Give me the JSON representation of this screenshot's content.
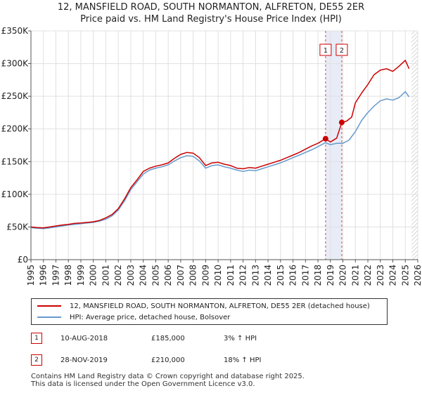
{
  "chart_data": {
    "type": "line",
    "title": "12, MANSFIELD ROAD, SOUTH NORMANTON, ALFRETON, DE55 2ER",
    "subtitle": "Price paid vs. HM Land Registry's House Price Index (HPI)",
    "xlim": [
      1995,
      2026
    ],
    "ylim": [
      0,
      350000
    ],
    "y_ticks": [
      0,
      50000,
      100000,
      150000,
      200000,
      250000,
      300000,
      350000
    ],
    "y_tick_labels": [
      "£0",
      "£50K",
      "£100K",
      "£150K",
      "£200K",
      "£250K",
      "£300K",
      "£350K"
    ],
    "x_ticks": [
      1995,
      1996,
      1997,
      1998,
      1999,
      2000,
      2001,
      2002,
      2003,
      2004,
      2005,
      2006,
      2007,
      2008,
      2009,
      2010,
      2011,
      2012,
      2013,
      2014,
      2015,
      2016,
      2017,
      2018,
      2019,
      2020,
      2021,
      2022,
      2023,
      2024,
      2025,
      2026
    ],
    "x_tick_labels": [
      "1995",
      "1996",
      "1997",
      "1998",
      "1999",
      "2000",
      "2001",
      "2002",
      "2003",
      "2004",
      "2005",
      "2006",
      "2007",
      "2008",
      "2009",
      "2010",
      "2011",
      "2012",
      "2013",
      "2014",
      "2015",
      "2016",
      "2017",
      "2018",
      "2019",
      "2020",
      "2021",
      "2022",
      "2023",
      "2024",
      "2025",
      "2026"
    ],
    "grid": true,
    "legend_position": "below",
    "series": [
      {
        "name": "12, MANSFIELD ROAD, SOUTH NORMANTON, ALFRETON, DE55 2ER (detached house)",
        "color": "#cc0000",
        "x": [
          1995.0,
          1995.5,
          1996.0,
          1996.5,
          1997.0,
          1997.5,
          1998.0,
          1998.5,
          1999.0,
          1999.5,
          2000.0,
          2000.5,
          2001.0,
          2001.5,
          2002.0,
          2002.5,
          2003.0,
          2003.5,
          2004.0,
          2004.5,
          2005.0,
          2005.5,
          2006.0,
          2006.5,
          2007.0,
          2007.5,
          2008.0,
          2008.5,
          2009.0,
          2009.5,
          2010.0,
          2010.5,
          2011.0,
          2011.5,
          2012.0,
          2012.5,
          2013.0,
          2013.5,
          2014.0,
          2014.5,
          2015.0,
          2015.5,
          2016.0,
          2016.5,
          2017.0,
          2017.5,
          2018.0,
          2018.6,
          2019.0,
          2019.5,
          2019.91,
          2020.3,
          2020.7,
          2021.0,
          2021.5,
          2022.0,
          2022.5,
          2023.0,
          2023.5,
          2024.0,
          2024.5,
          2025.0,
          2025.3
        ],
        "y": [
          50000,
          49000,
          48500,
          50000,
          51500,
          53000,
          54000,
          55500,
          56000,
          57000,
          58000,
          60000,
          64000,
          69000,
          78000,
          93000,
          110000,
          122000,
          135000,
          140000,
          143000,
          145000,
          148000,
          155000,
          161000,
          164000,
          163000,
          156000,
          144000,
          148000,
          149000,
          146000,
          144000,
          140000,
          139000,
          141000,
          140000,
          143000,
          146000,
          149000,
          152000,
          156000,
          160000,
          164000,
          169000,
          174000,
          178000,
          185000,
          180000,
          186000,
          210000,
          212000,
          218000,
          240000,
          255000,
          268000,
          283000,
          290000,
          292000,
          288000,
          296000,
          305000,
          292000
        ]
      },
      {
        "name": "HPI: Average price, detached house, Bolsover",
        "color": "#6699cc",
        "x": [
          1995.0,
          1995.5,
          1996.0,
          1996.5,
          1997.0,
          1997.5,
          1998.0,
          1998.5,
          1999.0,
          1999.5,
          2000.0,
          2000.5,
          2001.0,
          2001.5,
          2002.0,
          2002.5,
          2003.0,
          2003.5,
          2004.0,
          2004.5,
          2005.0,
          2005.5,
          2006.0,
          2006.5,
          2007.0,
          2007.5,
          2008.0,
          2008.5,
          2009.0,
          2009.5,
          2010.0,
          2010.5,
          2011.0,
          2011.5,
          2012.0,
          2012.5,
          2013.0,
          2013.5,
          2014.0,
          2014.5,
          2015.0,
          2015.5,
          2016.0,
          2016.5,
          2017.0,
          2017.5,
          2018.0,
          2018.6,
          2019.0,
          2019.5,
          2020.0,
          2020.5,
          2021.0,
          2021.5,
          2022.0,
          2022.5,
          2023.0,
          2023.5,
          2024.0,
          2024.5,
          2025.0,
          2025.3
        ],
        "y": [
          49000,
          48000,
          47500,
          48500,
          50000,
          51500,
          53000,
          54000,
          55000,
          56000,
          57000,
          59000,
          62000,
          67000,
          76000,
          90000,
          107000,
          119000,
          131000,
          137000,
          140000,
          142000,
          145000,
          151000,
          156000,
          159000,
          158000,
          151000,
          140000,
          144000,
          145000,
          142000,
          140000,
          137000,
          135000,
          137000,
          136000,
          139000,
          142000,
          145000,
          148000,
          152000,
          156000,
          160000,
          164000,
          168000,
          173000,
          179000,
          176000,
          178000,
          178000,
          183000,
          196000,
          213000,
          225000,
          235000,
          243000,
          246000,
          244000,
          248000,
          257000,
          249000
        ]
      }
    ],
    "markers": [
      {
        "label": "1",
        "x": 2018.61,
        "y": 185000
      },
      {
        "label": "2",
        "x": 2019.91,
        "y": 210000
      }
    ],
    "shaded_ranges": [
      [
        2018.61,
        2019.91
      ]
    ],
    "hatched_from": 2025.5
  },
  "legend": {
    "items": [
      {
        "label": "12, MANSFIELD ROAD, SOUTH NORMANTON, ALFRETON, DE55 2ER (detached house)",
        "color": "#cc0000"
      },
      {
        "label": "HPI: Average price, detached house, Bolsover",
        "color": "#6699cc"
      }
    ]
  },
  "transactions": [
    {
      "num": "1",
      "date": "10-AUG-2018",
      "price": "£185,000",
      "hpi": "3% ↑ HPI"
    },
    {
      "num": "2",
      "date": "28-NOV-2019",
      "price": "£210,000",
      "hpi": "18% ↑ HPI"
    }
  ],
  "footer": {
    "line1": "Contains HM Land Registry data © Crown copyright and database right 2025.",
    "line2": "This data is licensed under the Open Government Licence v3.0."
  }
}
